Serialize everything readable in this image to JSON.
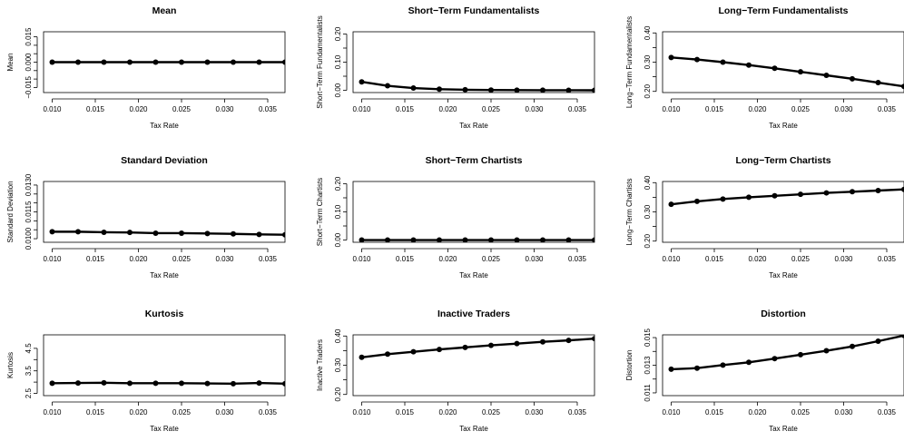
{
  "chart_data": [
    {
      "type": "line",
      "title": "Mean",
      "xlabel": "Tax Rate",
      "ylabel": "Mean",
      "xlim": [
        0.009,
        0.037
      ],
      "ylim": [
        -0.018,
        0.018
      ],
      "xticks": [
        "0.010",
        "0.015",
        "0.020",
        "0.025",
        "0.030",
        "0.035"
      ],
      "xtick_values": [
        0.01,
        0.015,
        0.02,
        0.025,
        0.03,
        0.035
      ],
      "yticks": [
        "−0.015",
        "0.000",
        "0.015"
      ],
      "ytick_values": [
        -0.015,
        0.0,
        0.015
      ],
      "y_minor_ticks": [
        -0.01,
        -0.005,
        0.005,
        0.01
      ],
      "x": [
        0.01,
        0.013,
        0.016,
        0.019,
        0.022,
        0.025,
        0.028,
        0.031,
        0.034,
        0.037
      ],
      "y": [
        0.0,
        0.0,
        0.0,
        0.0,
        0.0,
        0.0,
        0.0,
        0.0,
        0.0,
        0.0
      ]
    },
    {
      "type": "line",
      "title": "Short−Term Fundamentalists",
      "xlabel": "Tax Rate",
      "ylabel": "Short−Term Fundamentalists",
      "xlim": [
        0.009,
        0.037
      ],
      "ylim": [
        -0.008,
        0.208
      ],
      "xticks": [
        "0.010",
        "0.015",
        "0.020",
        "0.025",
        "0.030",
        "0.035"
      ],
      "xtick_values": [
        0.01,
        0.015,
        0.02,
        0.025,
        0.03,
        0.035
      ],
      "yticks": [
        "0.00",
        "0.10",
        "0.20"
      ],
      "ytick_values": [
        0.0,
        0.1,
        0.2
      ],
      "y_minor_ticks": [
        0.05,
        0.15
      ],
      "x": [
        0.01,
        0.013,
        0.016,
        0.019,
        0.022,
        0.025,
        0.028,
        0.031,
        0.034,
        0.037
      ],
      "y": [
        0.03,
        0.016,
        0.008,
        0.004,
        0.002,
        0.001,
        0.0005,
        0.0003,
        0.0002,
        0.0001
      ]
    },
    {
      "type": "line",
      "title": "Long−Term Fundamentalists",
      "xlabel": "Tax Rate",
      "ylabel": "Long−Term Fundamentalists",
      "xlim": [
        0.009,
        0.037
      ],
      "ylim": [
        0.196,
        0.404
      ],
      "xticks": [
        "0.010",
        "0.015",
        "0.020",
        "0.025",
        "0.030",
        "0.035"
      ],
      "xtick_values": [
        0.01,
        0.015,
        0.02,
        0.025,
        0.03,
        0.035
      ],
      "yticks": [
        "0.20",
        "0.30",
        "0.40"
      ],
      "ytick_values": [
        0.2,
        0.3,
        0.4
      ],
      "y_minor_ticks": [
        0.25,
        0.35
      ],
      "x": [
        0.01,
        0.013,
        0.016,
        0.019,
        0.022,
        0.025,
        0.028,
        0.031,
        0.034,
        0.037
      ],
      "y": [
        0.316,
        0.309,
        0.3,
        0.29,
        0.279,
        0.267,
        0.255,
        0.243,
        0.23,
        0.217
      ]
    },
    {
      "type": "line",
      "title": "Standard Deviation",
      "xlabel": "Tax Rate",
      "ylabel": "Standard Deviation",
      "xlim": [
        0.009,
        0.037
      ],
      "ylim": [
        0.0098,
        0.0132
      ],
      "xticks": [
        "0.010",
        "0.015",
        "0.020",
        "0.025",
        "0.030",
        "0.035"
      ],
      "xtick_values": [
        0.01,
        0.015,
        0.02,
        0.025,
        0.03,
        0.035
      ],
      "yticks": [
        "0.0100",
        "0.0115",
        "0.0130"
      ],
      "ytick_values": [
        0.01,
        0.0115,
        0.013
      ],
      "y_minor_ticks": [
        0.0105,
        0.011,
        0.012,
        0.0125
      ],
      "x": [
        0.01,
        0.013,
        0.016,
        0.019,
        0.022,
        0.025,
        0.028,
        0.031,
        0.034,
        0.037
      ],
      "y": [
        0.01039,
        0.01039,
        0.01036,
        0.01035,
        0.01031,
        0.01031,
        0.01029,
        0.01027,
        0.01024,
        0.01022
      ]
    },
    {
      "type": "line",
      "title": "Short−Term Chartists",
      "xlabel": "Tax Rate",
      "ylabel": "Short−Term Chartists",
      "xlim": [
        0.009,
        0.037
      ],
      "ylim": [
        -0.008,
        0.208
      ],
      "xticks": [
        "0.010",
        "0.015",
        "0.020",
        "0.025",
        "0.030",
        "0.035"
      ],
      "xtick_values": [
        0.01,
        0.015,
        0.02,
        0.025,
        0.03,
        0.035
      ],
      "yticks": [
        "0.00",
        "0.10",
        "0.20"
      ],
      "ytick_values": [
        0.0,
        0.1,
        0.2
      ],
      "y_minor_ticks": [
        0.05,
        0.15
      ],
      "x": [
        0.01,
        0.013,
        0.016,
        0.019,
        0.022,
        0.025,
        0.028,
        0.031,
        0.034,
        0.037
      ],
      "y": [
        0.0,
        0.0,
        0.0,
        0.0,
        0.0,
        0.0,
        0.0,
        0.0,
        0.0,
        0.0
      ]
    },
    {
      "type": "line",
      "title": "Long−Term Chartists",
      "xlabel": "Tax Rate",
      "ylabel": "Long−Term Chartists",
      "xlim": [
        0.009,
        0.037
      ],
      "ylim": [
        0.196,
        0.404
      ],
      "xticks": [
        "0.010",
        "0.015",
        "0.020",
        "0.025",
        "0.030",
        "0.035"
      ],
      "xtick_values": [
        0.01,
        0.015,
        0.02,
        0.025,
        0.03,
        0.035
      ],
      "yticks": [
        "0.20",
        "0.30",
        "0.40"
      ],
      "ytick_values": [
        0.2,
        0.3,
        0.4
      ],
      "y_minor_ticks": [
        0.25,
        0.35
      ],
      "x": [
        0.01,
        0.013,
        0.016,
        0.019,
        0.022,
        0.025,
        0.028,
        0.031,
        0.034,
        0.037
      ],
      "y": [
        0.326,
        0.336,
        0.344,
        0.35,
        0.355,
        0.36,
        0.365,
        0.369,
        0.373,
        0.377
      ]
    },
    {
      "type": "line",
      "title": "Kurtosis",
      "xlabel": "Tax Rate",
      "ylabel": "Kurtosis",
      "xlim": [
        0.009,
        0.037
      ],
      "ylim": [
        2.4,
        5.1
      ],
      "xticks": [
        "0.010",
        "0.015",
        "0.020",
        "0.025",
        "0.030",
        "0.035"
      ],
      "xtick_values": [
        0.01,
        0.015,
        0.02,
        0.025,
        0.03,
        0.035
      ],
      "yticks": [
        "2.5",
        "3.5",
        "4.5"
      ],
      "ytick_values": [
        2.5,
        3.5,
        4.5
      ],
      "y_minor_ticks": [
        3.0,
        4.0
      ],
      "x": [
        0.01,
        0.013,
        0.016,
        0.019,
        0.022,
        0.025,
        0.028,
        0.031,
        0.034,
        0.037
      ],
      "y": [
        2.95,
        2.96,
        2.97,
        2.95,
        2.95,
        2.95,
        2.94,
        2.93,
        2.96,
        2.93
      ]
    },
    {
      "type": "line",
      "title": "Inactive Traders",
      "xlabel": "Tax Rate",
      "ylabel": "Inactive Traders",
      "xlim": [
        0.009,
        0.037
      ],
      "ylim": [
        0.196,
        0.404
      ],
      "xticks": [
        "0.010",
        "0.015",
        "0.020",
        "0.025",
        "0.030",
        "0.035"
      ],
      "xtick_values": [
        0.01,
        0.015,
        0.02,
        0.025,
        0.03,
        0.035
      ],
      "yticks": [
        "0.20",
        "0.30",
        "0.40"
      ],
      "ytick_values": [
        0.2,
        0.3,
        0.4
      ],
      "y_minor_ticks": [
        0.25,
        0.35
      ],
      "x": [
        0.01,
        0.013,
        0.016,
        0.019,
        0.022,
        0.025,
        0.028,
        0.031,
        0.034,
        0.037
      ],
      "y": [
        0.327,
        0.338,
        0.346,
        0.354,
        0.361,
        0.368,
        0.374,
        0.38,
        0.385,
        0.391
      ]
    },
    {
      "type": "line",
      "title": "Distortion",
      "xlabel": "Tax Rate",
      "ylabel": "Distortion",
      "xlim": [
        0.009,
        0.037
      ],
      "ylim": [
        0.0108,
        0.0152
      ],
      "xticks": [
        "0.010",
        "0.015",
        "0.020",
        "0.025",
        "0.030",
        "0.035"
      ],
      "xtick_values": [
        0.01,
        0.015,
        0.02,
        0.025,
        0.03,
        0.035
      ],
      "yticks": [
        "0.011",
        "0.013",
        "0.015"
      ],
      "ytick_values": [
        0.011,
        0.013,
        0.015
      ],
      "y_minor_ticks": [
        0.012,
        0.014
      ],
      "x": [
        0.01,
        0.013,
        0.016,
        0.019,
        0.022,
        0.025,
        0.028,
        0.031,
        0.034,
        0.037
      ],
      "y": [
        0.01271,
        0.01279,
        0.01301,
        0.01321,
        0.01348,
        0.01376,
        0.01405,
        0.01436,
        0.01474,
        0.01515
      ]
    }
  ]
}
